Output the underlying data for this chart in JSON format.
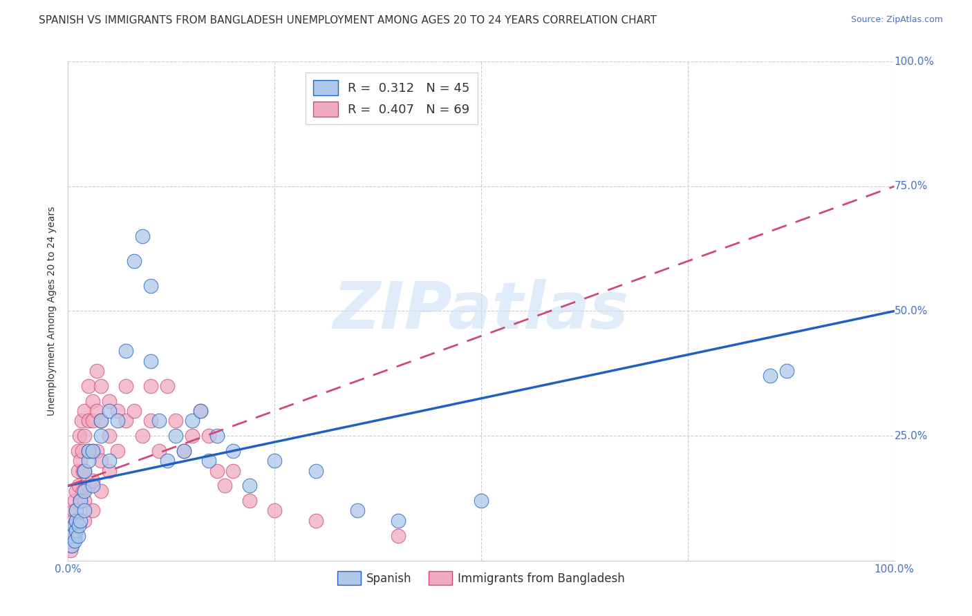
{
  "title": "SPANISH VS IMMIGRANTS FROM BANGLADESH UNEMPLOYMENT AMONG AGES 20 TO 24 YEARS CORRELATION CHART",
  "source": "Source: ZipAtlas.com",
  "ylabel": "Unemployment Among Ages 20 to 24 years",
  "xlim": [
    0,
    1
  ],
  "ylim": [
    0,
    1
  ],
  "watermark": "ZIPatlas",
  "spanish_color": "#aec8ea",
  "bangladesh_color": "#f0aac0",
  "spanish_line_color": "#2060c0",
  "bangladesh_line_color": "#d04878",
  "spanish_line": {
    "x0": 0.0,
    "y0": 0.15,
    "x1": 1.0,
    "y1": 0.5
  },
  "bangladesh_line": {
    "x0": 0.0,
    "y0": 0.15,
    "x1": 1.0,
    "y1": 0.75
  },
  "spanish_scatter": [
    [
      0.005,
      0.03
    ],
    [
      0.005,
      0.05
    ],
    [
      0.007,
      0.07
    ],
    [
      0.008,
      0.04
    ],
    [
      0.01,
      0.06
    ],
    [
      0.01,
      0.08
    ],
    [
      0.01,
      0.1
    ],
    [
      0.012,
      0.05
    ],
    [
      0.013,
      0.07
    ],
    [
      0.015,
      0.12
    ],
    [
      0.015,
      0.08
    ],
    [
      0.02,
      0.1
    ],
    [
      0.02,
      0.14
    ],
    [
      0.02,
      0.18
    ],
    [
      0.025,
      0.2
    ],
    [
      0.025,
      0.22
    ],
    [
      0.03,
      0.15
    ],
    [
      0.03,
      0.22
    ],
    [
      0.04,
      0.25
    ],
    [
      0.04,
      0.28
    ],
    [
      0.05,
      0.2
    ],
    [
      0.05,
      0.3
    ],
    [
      0.06,
      0.28
    ],
    [
      0.07,
      0.42
    ],
    [
      0.08,
      0.6
    ],
    [
      0.09,
      0.65
    ],
    [
      0.1,
      0.55
    ],
    [
      0.1,
      0.4
    ],
    [
      0.11,
      0.28
    ],
    [
      0.12,
      0.2
    ],
    [
      0.13,
      0.25
    ],
    [
      0.14,
      0.22
    ],
    [
      0.15,
      0.28
    ],
    [
      0.16,
      0.3
    ],
    [
      0.17,
      0.2
    ],
    [
      0.18,
      0.25
    ],
    [
      0.2,
      0.22
    ],
    [
      0.22,
      0.15
    ],
    [
      0.25,
      0.2
    ],
    [
      0.3,
      0.18
    ],
    [
      0.35,
      0.1
    ],
    [
      0.4,
      0.08
    ],
    [
      0.5,
      0.12
    ],
    [
      0.85,
      0.37
    ],
    [
      0.87,
      0.38
    ]
  ],
  "bangladesh_scatter": [
    [
      0.003,
      0.02
    ],
    [
      0.004,
      0.03
    ],
    [
      0.005,
      0.04
    ],
    [
      0.005,
      0.06
    ],
    [
      0.006,
      0.08
    ],
    [
      0.007,
      0.1
    ],
    [
      0.008,
      0.05
    ],
    [
      0.008,
      0.12
    ],
    [
      0.009,
      0.07
    ],
    [
      0.01,
      0.14
    ],
    [
      0.01,
      0.1
    ],
    [
      0.01,
      0.08
    ],
    [
      0.01,
      0.06
    ],
    [
      0.012,
      0.18
    ],
    [
      0.012,
      0.22
    ],
    [
      0.013,
      0.15
    ],
    [
      0.014,
      0.25
    ],
    [
      0.015,
      0.2
    ],
    [
      0.015,
      0.12
    ],
    [
      0.016,
      0.28
    ],
    [
      0.017,
      0.22
    ],
    [
      0.018,
      0.18
    ],
    [
      0.018,
      0.14
    ],
    [
      0.02,
      0.3
    ],
    [
      0.02,
      0.25
    ],
    [
      0.02,
      0.18
    ],
    [
      0.02,
      0.12
    ],
    [
      0.02,
      0.08
    ],
    [
      0.025,
      0.35
    ],
    [
      0.025,
      0.28
    ],
    [
      0.025,
      0.22
    ],
    [
      0.025,
      0.15
    ],
    [
      0.03,
      0.32
    ],
    [
      0.03,
      0.28
    ],
    [
      0.03,
      0.22
    ],
    [
      0.03,
      0.16
    ],
    [
      0.03,
      0.1
    ],
    [
      0.035,
      0.38
    ],
    [
      0.035,
      0.3
    ],
    [
      0.035,
      0.22
    ],
    [
      0.04,
      0.35
    ],
    [
      0.04,
      0.28
    ],
    [
      0.04,
      0.2
    ],
    [
      0.04,
      0.14
    ],
    [
      0.05,
      0.32
    ],
    [
      0.05,
      0.25
    ],
    [
      0.05,
      0.18
    ],
    [
      0.06,
      0.3
    ],
    [
      0.06,
      0.22
    ],
    [
      0.07,
      0.35
    ],
    [
      0.07,
      0.28
    ],
    [
      0.08,
      0.3
    ],
    [
      0.09,
      0.25
    ],
    [
      0.1,
      0.28
    ],
    [
      0.1,
      0.35
    ],
    [
      0.11,
      0.22
    ],
    [
      0.12,
      0.35
    ],
    [
      0.13,
      0.28
    ],
    [
      0.14,
      0.22
    ],
    [
      0.15,
      0.25
    ],
    [
      0.16,
      0.3
    ],
    [
      0.17,
      0.25
    ],
    [
      0.18,
      0.18
    ],
    [
      0.19,
      0.15
    ],
    [
      0.2,
      0.18
    ],
    [
      0.22,
      0.12
    ],
    [
      0.25,
      0.1
    ],
    [
      0.3,
      0.08
    ],
    [
      0.4,
      0.05
    ]
  ],
  "background_color": "#ffffff",
  "grid_color": "#cccccc",
  "title_fontsize": 11,
  "axis_label_fontsize": 10,
  "tick_fontsize": 11,
  "source_fontsize": 9
}
